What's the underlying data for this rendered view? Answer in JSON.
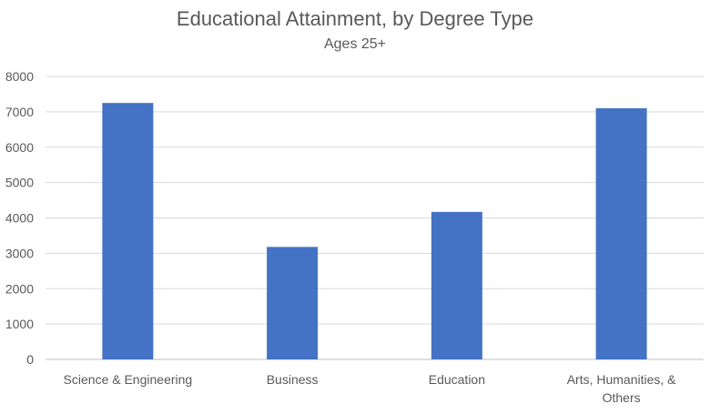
{
  "chart_data": {
    "type": "bar",
    "title": "Educational Attainment, by Degree Type",
    "subtitle": "Ages 25+",
    "categories": [
      "Science & Engineering",
      "Business",
      "Education",
      "Arts, Humanities, & Others"
    ],
    "values": [
      7250,
      3180,
      4170,
      7100
    ],
    "xlabel": "",
    "ylabel": "",
    "ylim": [
      0,
      8000
    ],
    "yticks": [
      0,
      1000,
      2000,
      3000,
      4000,
      5000,
      6000,
      7000,
      8000
    ],
    "grid": true,
    "legend": "none",
    "bar_color": "#4472C4"
  }
}
